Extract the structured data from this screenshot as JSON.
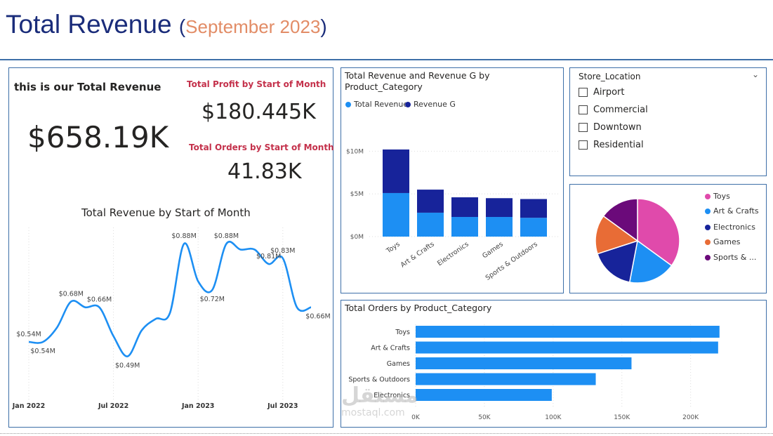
{
  "header": {
    "title": "Total Revenue",
    "paren_open": "(",
    "subtitle": "September 2023",
    "paren_close": ")"
  },
  "kpi": {
    "total_revenue_label": "this is our Total Revenue",
    "total_revenue_value": "$658.19K",
    "total_profit_label": "Total Profit by Start of Month",
    "total_profit_value": "$180.445K",
    "total_orders_label": "Total Orders by Start of Month",
    "total_orders_value": "41.83K"
  },
  "slicer": {
    "title": "Store_Location",
    "chevron": "⌄",
    "items": [
      "Airport",
      "Commercial",
      "Downtown",
      "Residential"
    ]
  },
  "pie": {
    "legend": [
      "Toys",
      "Art & Crafts",
      "Electronics",
      "Games",
      "Sports & ..."
    ]
  },
  "watermark": {
    "line1": "مستقل",
    "line2": "mostaql.com"
  },
  "colors": {
    "light_blue": "#1d8ff3",
    "dark_blue": "#17239a",
    "pink": "#e04aab",
    "orange": "#e86c36",
    "purple": "#6b0a7a",
    "header_title": "#1a2c7a",
    "header_subtitle": "#e28c66",
    "kpi_label_red": "#c4314b",
    "panel_border": "#3d6fa8"
  },
  "chart_data": [
    {
      "type": "line",
      "title": "Total Revenue by Start of Month",
      "x": [
        "Jan 2022",
        "Feb 2022",
        "Mar 2022",
        "Apr 2022",
        "May 2022",
        "Jun 2022",
        "Jul 2022",
        "Aug 2022",
        "Sep 2022",
        "Oct 2022",
        "Nov 2022",
        "Dec 2022",
        "Jan 2023",
        "Feb 2023",
        "Mar 2023",
        "Apr 2023",
        "May 2023",
        "Jun 2023",
        "Jul 2023",
        "Aug 2023",
        "Sep 2023"
      ],
      "x_tick_labels": [
        "Jan 2022",
        "Jul 2022",
        "Jan 2023",
        "Jul 2023"
      ],
      "series": [
        {
          "values": [
            0.54,
            0.54,
            0.59,
            0.68,
            0.66,
            0.66,
            0.56,
            0.49,
            0.58,
            0.62,
            0.64,
            0.88,
            0.75,
            0.72,
            0.88,
            0.86,
            0.86,
            0.81,
            0.83,
            0.66,
            0.66
          ]
        }
      ],
      "data_labels": [
        {
          "x": "Jan 2022",
          "text": "$0.54M"
        },
        {
          "x": "Feb 2022",
          "text": "$0.54M"
        },
        {
          "x": "Apr 2022",
          "text": "$0.68M"
        },
        {
          "x": "Jun 2022",
          "text": "$0.66M"
        },
        {
          "x": "Aug 2022",
          "text": "$0.49M"
        },
        {
          "x": "Dec 2022",
          "text": "$0.88M"
        },
        {
          "x": "Feb 2023",
          "text": "$0.72M"
        },
        {
          "x": "Mar 2023",
          "text": "$0.88M"
        },
        {
          "x": "Jun 2023",
          "text": "$0.81M"
        },
        {
          "x": "Jul 2023",
          "text": "$0.83M"
        },
        {
          "x": "Sep 2023",
          "text": "$0.66M"
        }
      ],
      "ylim": [
        0.45,
        0.9
      ],
      "grid": false
    },
    {
      "type": "bar",
      "stacked": true,
      "title": "Total Revenue and Revenue G by Product_Category",
      "categories": [
        "Toys",
        "Art & Crafts",
        "Electronics",
        "Games",
        "Sports & Outdoors"
      ],
      "series": [
        {
          "name": "Total Revenue",
          "values": [
            5.1,
            2.8,
            2.3,
            2.3,
            2.2
          ]
        },
        {
          "name": "Revenue G",
          "values": [
            5.1,
            2.7,
            2.3,
            2.2,
            2.2
          ]
        }
      ],
      "y_tick_labels": [
        "$0M",
        "$5M",
        "$10M"
      ],
      "ylim": [
        0,
        12
      ],
      "legend": "top-left"
    },
    {
      "type": "pie",
      "categories": [
        "Toys",
        "Art & Crafts",
        "Electronics",
        "Games",
        "Sports & ..."
      ],
      "values": [
        35,
        18,
        17,
        15,
        15
      ],
      "legend": "right"
    },
    {
      "type": "bar",
      "orientation": "horizontal",
      "title": "Total Orders by Product_Category",
      "categories": [
        "Toys",
        "Art & Crafts",
        "Games",
        "Sports & Outdoors",
        "Electronics"
      ],
      "values": [
        221000,
        220000,
        157000,
        131000,
        99000
      ],
      "x_tick_labels": [
        "0K",
        "50K",
        "100K",
        "150K",
        "200K"
      ],
      "xlim": [
        0,
        240000
      ],
      "grid": true
    }
  ]
}
